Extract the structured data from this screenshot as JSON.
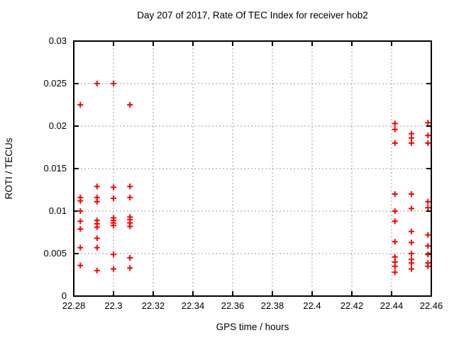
{
  "window": {
    "background": "#ffffff",
    "text_color": "#000000"
  },
  "chart_data": {
    "type": "scatter",
    "title": "Day 207 of 2017, Rate Of TEC Index for receiver hob2",
    "xlabel": "GPS time / hours",
    "ylabel": "ROTI / TECUs",
    "xlim": [
      22.28,
      22.46
    ],
    "ylim": [
      0,
      0.03
    ],
    "x_ticks": [
      22.28,
      22.3,
      22.32,
      22.34,
      22.36,
      22.38,
      22.4,
      22.42,
      22.44,
      22.46
    ],
    "x_tick_labels": [
      "22.28",
      "22.3",
      "22.32",
      "22.34",
      "22.36",
      "22.38",
      "22.4",
      "22.42",
      "22.44",
      "22.46"
    ],
    "y_ticks": [
      0,
      0.005,
      0.01,
      0.015,
      0.02,
      0.025,
      0.03
    ],
    "y_tick_labels": [
      "0",
      "0.005",
      "0.01",
      "0.015",
      "0.02",
      "0.025",
      "0.03"
    ],
    "grid": true,
    "legend": "none",
    "marker": {
      "shape": "plus",
      "color": "#ff0000",
      "size": 9
    },
    "axis_color": "#000000",
    "grid_color": "#9e9e9e",
    "series": [
      {
        "name": "ROTI",
        "points": [
          [
            22.2833,
            0.0225
          ],
          [
            22.2833,
            0.0116
          ],
          [
            22.2833,
            0.0112
          ],
          [
            22.2833,
            0.01
          ],
          [
            22.2833,
            0.0088
          ],
          [
            22.2833,
            0.0079
          ],
          [
            22.2833,
            0.0057
          ],
          [
            22.2833,
            0.0036
          ],
          [
            22.2917,
            0.025
          ],
          [
            22.2917,
            0.0129
          ],
          [
            22.2917,
            0.0116
          ],
          [
            22.2917,
            0.0111
          ],
          [
            22.2917,
            0.0089
          ],
          [
            22.2917,
            0.0085
          ],
          [
            22.2917,
            0.0081
          ],
          [
            22.2917,
            0.0068
          ],
          [
            22.2917,
            0.0057
          ],
          [
            22.2917,
            0.003
          ],
          [
            22.3,
            0.025
          ],
          [
            22.3,
            0.0128
          ],
          [
            22.3,
            0.0115
          ],
          [
            22.3,
            0.0092
          ],
          [
            22.3,
            0.0089
          ],
          [
            22.3,
            0.0086
          ],
          [
            22.3,
            0.0083
          ],
          [
            22.3,
            0.0049
          ],
          [
            22.3,
            0.0032
          ],
          [
            22.3083,
            0.0225
          ],
          [
            22.3083,
            0.0129
          ],
          [
            22.3083,
            0.0116
          ],
          [
            22.3083,
            0.0093
          ],
          [
            22.3083,
            0.009
          ],
          [
            22.3083,
            0.0086
          ],
          [
            22.3083,
            0.0082
          ],
          [
            22.3083,
            0.0045
          ],
          [
            22.3083,
            0.0033
          ],
          [
            22.4417,
            0.0203
          ],
          [
            22.4417,
            0.0196
          ],
          [
            22.4417,
            0.018
          ],
          [
            22.4417,
            0.012
          ],
          [
            22.4417,
            0.01
          ],
          [
            22.4417,
            0.0088
          ],
          [
            22.4417,
            0.0064
          ],
          [
            22.4417,
            0.0046
          ],
          [
            22.4417,
            0.004
          ],
          [
            22.4417,
            0.0035
          ],
          [
            22.4417,
            0.0028
          ],
          [
            22.45,
            0.0191
          ],
          [
            22.45,
            0.0186
          ],
          [
            22.45,
            0.018
          ],
          [
            22.45,
            0.012
          ],
          [
            22.45,
            0.0103
          ],
          [
            22.45,
            0.0076
          ],
          [
            22.45,
            0.0063
          ],
          [
            22.45,
            0.005
          ],
          [
            22.45,
            0.0043
          ],
          [
            22.45,
            0.0039
          ],
          [
            22.45,
            0.0032
          ],
          [
            22.4583,
            0.0204
          ],
          [
            22.4583,
            0.0189
          ],
          [
            22.4583,
            0.018
          ],
          [
            22.4583,
            0.0111
          ],
          [
            22.4583,
            0.0104
          ],
          [
            22.4583,
            0.0072
          ],
          [
            22.4583,
            0.0059
          ],
          [
            22.4583,
            0.0049
          ],
          [
            22.4583,
            0.0039
          ],
          [
            22.4583,
            0.0035
          ]
        ]
      }
    ]
  }
}
